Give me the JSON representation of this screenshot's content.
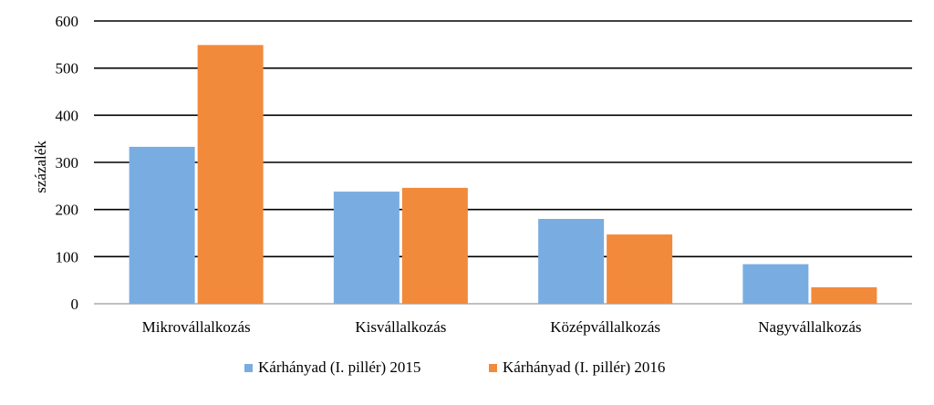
{
  "chart_data": {
    "type": "bar",
    "title": "",
    "xlabel": "",
    "ylabel": "százalék",
    "ylim": [
      0,
      600
    ],
    "yticks": [
      0,
      100,
      200,
      300,
      400,
      500,
      600
    ],
    "grid": true,
    "legend_position": "bottom",
    "categories": [
      "Mikrovállalkozás",
      "Kisvállalkozás",
      "Középvállalkozás",
      "Nagyvállalkozás"
    ],
    "series": [
      {
        "name": "Kárhányad (I. pillér) 2015",
        "color": "#79ADE1",
        "values": [
          333,
          238,
          180,
          84
        ]
      },
      {
        "name": "Kárhányad (I. pillér) 2016",
        "color": "#F28A3C",
        "values": [
          549,
          246,
          147,
          35
        ]
      }
    ]
  }
}
